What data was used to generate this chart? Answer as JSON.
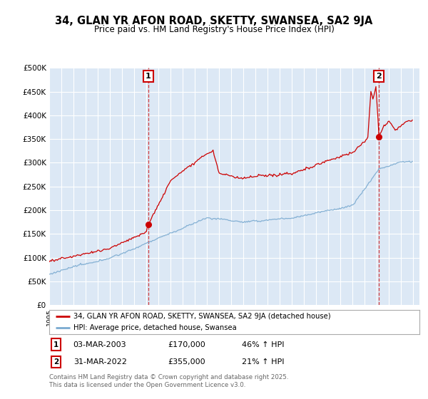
{
  "title": "34, GLAN YR AFON ROAD, SKETTY, SWANSEA, SA2 9JA",
  "subtitle": "Price paid vs. HM Land Registry's House Price Index (HPI)",
  "title_fontsize": 10.5,
  "subtitle_fontsize": 8.5,
  "background_color": "#ffffff",
  "plot_bg_color": "#dce8f5",
  "grid_color": "#ffffff",
  "red_color": "#cc0000",
  "blue_color": "#7aaad0",
  "purchase1": {
    "date": "03-MAR-2003",
    "price": 170000,
    "pct": "46% ↑ HPI"
  },
  "purchase2": {
    "date": "31-MAR-2022",
    "price": 355000,
    "pct": "21% ↑ HPI"
  },
  "ylabel_ticks": [
    "£0",
    "£50K",
    "£100K",
    "£150K",
    "£200K",
    "£250K",
    "£300K",
    "£350K",
    "£400K",
    "£450K",
    "£500K"
  ],
  "ytick_values": [
    0,
    50000,
    100000,
    150000,
    200000,
    250000,
    300000,
    350000,
    400000,
    450000,
    500000
  ],
  "legend_line1": "34, GLAN YR AFON ROAD, SKETTY, SWANSEA, SA2 9JA (detached house)",
  "legend_line2": "HPI: Average price, detached house, Swansea",
  "footer": "Contains HM Land Registry data © Crown copyright and database right 2025.\nThis data is licensed under the Open Government Licence v3.0."
}
